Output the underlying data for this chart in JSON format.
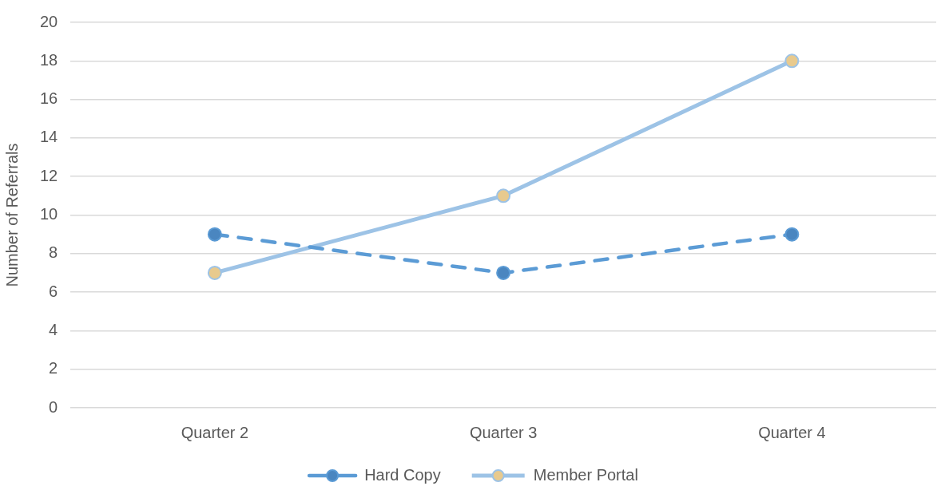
{
  "chart_data": {
    "type": "line",
    "ylabel": "Number of Referrals",
    "categories": [
      "Quarter 2",
      "Quarter 3",
      "Quarter 4"
    ],
    "series": [
      {
        "name": "Hard Copy",
        "color": "#5b9bd5",
        "colors": [
          "#4a86c0",
          "#4a86c0",
          "#4a86c0"
        ],
        "line_style": "dashed",
        "values": [
          9,
          7,
          9
        ]
      },
      {
        "name": "Member Portal",
        "color": "#9dc3e6",
        "colors": [
          "#e8ca8e",
          "#e8ca8e",
          "#e8ca8e"
        ],
        "line_style": "solid",
        "values": [
          7,
          11,
          18
        ]
      }
    ],
    "ylim": [
      0,
      20
    ],
    "yticks": [
      0,
      2,
      4,
      6,
      8,
      10,
      12,
      14,
      16,
      18,
      20
    ],
    "grid": "y",
    "legend": "bottom",
    "marker": "circle"
  }
}
